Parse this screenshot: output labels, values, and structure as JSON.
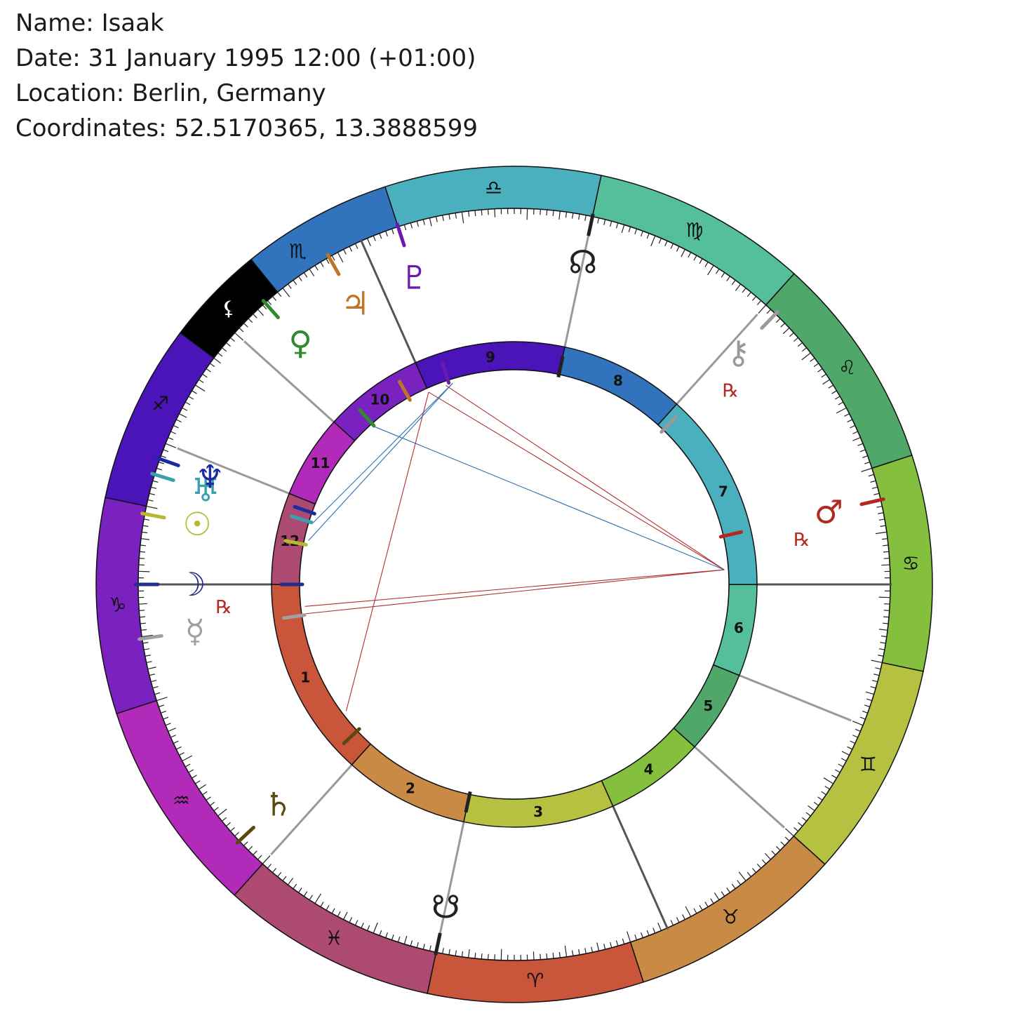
{
  "header": {
    "name": "Name: Isaak",
    "date": "Date: 31 January 1995 12:00 (+01:00)",
    "location": "Location: Berlin, Germany",
    "coordinates": "Coordinates: 52.5170365, 13.3888599"
  },
  "zodiac": [
    {
      "sign": "Aries",
      "glyph": "♈",
      "color": "#c9553a"
    },
    {
      "sign": "Taurus",
      "glyph": "♉",
      "color": "#c98a45"
    },
    {
      "sign": "Gemini",
      "glyph": "♊",
      "color": "#b6c142"
    },
    {
      "sign": "Cancer",
      "glyph": "♋",
      "color": "#84c03d"
    },
    {
      "sign": "Leo",
      "glyph": "♌",
      "color": "#4fa86a"
    },
    {
      "sign": "Virgo",
      "glyph": "♍",
      "color": "#55bf9c"
    },
    {
      "sign": "Libra",
      "glyph": "♎",
      "color": "#4ab0bd"
    },
    {
      "sign": "Scorpio",
      "glyph": "♏",
      "color": "#3273bd"
    },
    {
      "sign": "Sagittarius",
      "glyph": "♐",
      "color": "#4a14b9"
    },
    {
      "sign": "Capricorn",
      "glyph": "♑",
      "color": "#7a22c0"
    },
    {
      "sign": "Aquarius",
      "glyph": "♒",
      "color": "#b12ab9"
    },
    {
      "sign": "Pisces",
      "glyph": "♓",
      "color": "#ad4a72"
    }
  ],
  "ascendant_longitude": 282,
  "houses": [
    {
      "label": "1",
      "color": "#c9553a"
    },
    {
      "label": "2",
      "color": "#c98a45"
    },
    {
      "label": "3",
      "color": "#b6c142"
    },
    {
      "label": "4",
      "color": "#84c03d"
    },
    {
      "label": "5",
      "color": "#4fa86a"
    },
    {
      "label": "6",
      "color": "#55bf9c"
    },
    {
      "label": "7",
      "color": "#4ab0bd"
    },
    {
      "label": "8",
      "color": "#3273bd"
    },
    {
      "label": "9",
      "color": "#4a14b9"
    },
    {
      "label": "10",
      "color": "#7a22c0"
    },
    {
      "label": "11",
      "color": "#b12ab9"
    },
    {
      "label": "12",
      "color": "#ad4a72"
    }
  ],
  "house_cusps": [
    282,
    330,
    360,
    36,
    60,
    80,
    102,
    150,
    180,
    216,
    240,
    260
  ],
  "lilith": {
    "glyph": "⚸",
    "longitude": 238,
    "color": "#000000",
    "glyph_color": "#ffffff"
  },
  "planets": [
    {
      "name": "Sun",
      "glyph": "☉",
      "longitude": 271.2,
      "color": "#b7b730",
      "retrograde": false
    },
    {
      "name": "Moon",
      "glyph": "☽",
      "longitude": 282.0,
      "color": "#20308a",
      "retrograde": false
    },
    {
      "name": "Mercury",
      "glyph": "☿",
      "longitude": 290.3,
      "color": "#a0a0a0",
      "retrograde": true
    },
    {
      "name": "Venus",
      "glyph": "♀",
      "longitude": 233.5,
      "color": "#2f8a2f",
      "retrograde": false
    },
    {
      "name": "Mars",
      "glyph": "♂",
      "longitude": 115.0,
      "color": "#b02a20",
      "retrograde": true
    },
    {
      "name": "Jupiter",
      "glyph": "♃",
      "longitude": 221.5,
      "color": "#c0742a",
      "retrograde": false
    },
    {
      "name": "Saturn",
      "glyph": "♄",
      "longitude": 325.0,
      "color": "#5a4a10",
      "retrograde": false
    },
    {
      "name": "Uranus",
      "glyph": "♅",
      "longitude": 265.0,
      "color": "#3aa0b0",
      "retrograde": false
    },
    {
      "name": "Neptune",
      "glyph": "♆",
      "longitude": 262.5,
      "color": "#1a2aa0",
      "retrograde": false
    },
    {
      "name": "Pluto",
      "glyph": "♇",
      "longitude": 210.0,
      "color": "#6a1ab0",
      "retrograde": false
    },
    {
      "name": "Chiron",
      "glyph": "⚷",
      "longitude": 148.0,
      "color": "#999999",
      "retrograde": true
    }
  ],
  "nodes": [
    {
      "name": "North Node",
      "glyph": "☊",
      "longitude": 180.0,
      "color": "#222222"
    },
    {
      "name": "South Node",
      "glyph": "☋",
      "longitude": 0.0,
      "color": "#222222"
    }
  ],
  "retrograde_label": "℞",
  "retrograde_color": "#b02a20",
  "aspects": [
    {
      "from": 211.0,
      "to": 106.0,
      "color": "#b03030"
    },
    {
      "from": 216.0,
      "to": 106.0,
      "color": "#b03030"
    },
    {
      "from": 233.5,
      "to": 106.0,
      "color": "#2a70b0"
    },
    {
      "from": 209.0,
      "to": 270.0,
      "color": "#2a70b0"
    },
    {
      "from": 209.0,
      "to": 265.0,
      "color": "#2a70b0"
    },
    {
      "from": 290.0,
      "to": 106.0,
      "color": "#b03030"
    },
    {
      "from": 288.0,
      "to": 106.0,
      "color": "#b03030"
    },
    {
      "from": 216.0,
      "to": 319.0,
      "color": "#b03030"
    }
  ]
}
